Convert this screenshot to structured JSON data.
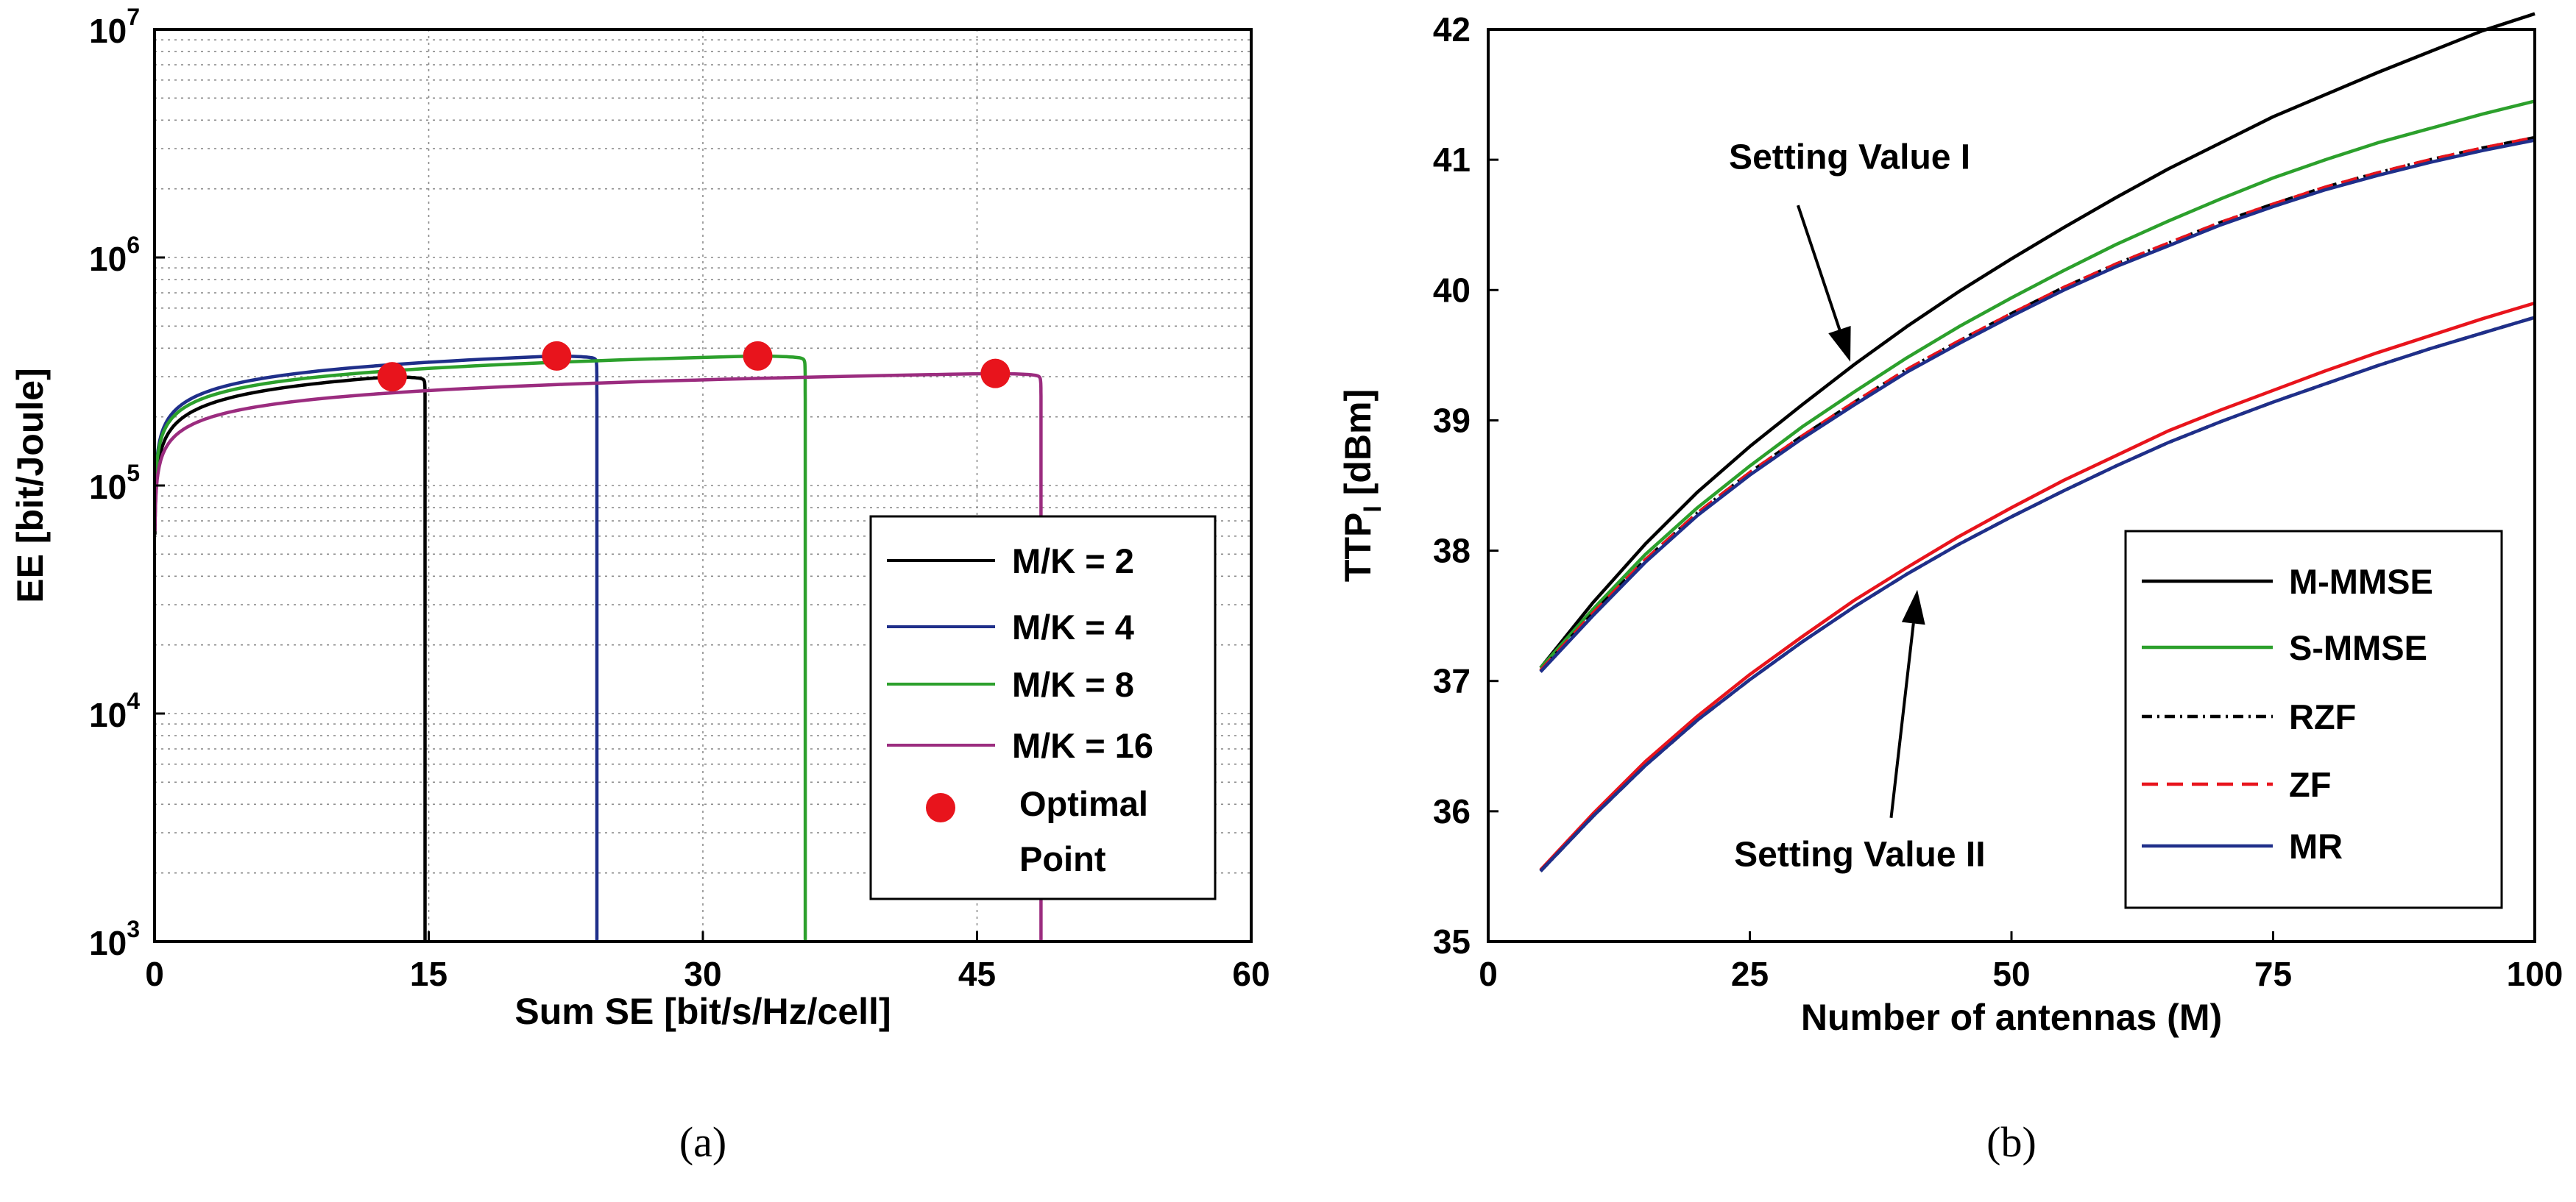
{
  "chart_data": [
    {
      "id": "a",
      "type": "line",
      "caption": "(a)",
      "xlabel": "Sum SE [bit/s/Hz/cell]",
      "ylabel": "EE [bit/Joule]",
      "xlim": [
        0,
        60
      ],
      "ylim_log10": [
        3,
        7
      ],
      "yscale": "log",
      "grid": true,
      "x_ticks": [
        0,
        15,
        30,
        45,
        60
      ],
      "x_tick_labels": [
        "0",
        "15",
        "30",
        "45",
        "60"
      ],
      "y_ticks_log10": [
        3,
        4,
        5,
        6,
        7
      ],
      "y_tick_labels": [
        {
          "base": "10",
          "exp": "3"
        },
        {
          "base": "10",
          "exp": "4"
        },
        {
          "base": "10",
          "exp": "5"
        },
        {
          "base": "10",
          "exp": "6"
        },
        {
          "base": "10",
          "exp": "7"
        }
      ],
      "legend_position": "lower-right",
      "series": [
        {
          "name": "M/K = 2",
          "color": "#000000",
          "peak_x": 13,
          "peak_y": 300000,
          "max_x": 14.8
        },
        {
          "name": "M/K = 4",
          "color": "#1f2f8a",
          "peak_x": 22,
          "peak_y": 370000,
          "max_x": 24.2
        },
        {
          "name": "M/K = 8",
          "color": "#2ca02c",
          "peak_x": 33,
          "peak_y": 370000,
          "max_x": 35.6
        },
        {
          "name": "M/K = 16",
          "color": "#9b2c7f",
          "peak_x": 46,
          "peak_y": 310000,
          "max_x": 48.5
        }
      ],
      "markers": {
        "name_lines": [
          "Optimal",
          "Point"
        ],
        "color": "#e8141c",
        "points": [
          {
            "x": 13,
            "y": 300000
          },
          {
            "x": 22,
            "y": 370000
          },
          {
            "x": 33,
            "y": 370000
          },
          {
            "x": 46,
            "y": 310000
          }
        ]
      }
    },
    {
      "id": "b",
      "type": "line",
      "caption": "(b)",
      "xlabel": "Number of antennas (M)",
      "ylabel": "TTP",
      "ylabel_sub": "I",
      "ylabel_suffix": " [dBm]",
      "xlim": [
        0,
        100
      ],
      "ylim": [
        35,
        42
      ],
      "grid": false,
      "x_ticks": [
        0,
        25,
        50,
        75,
        100
      ],
      "x_tick_labels": [
        "0",
        "25",
        "50",
        "75",
        "100"
      ],
      "y_ticks": [
        35,
        36,
        37,
        38,
        39,
        40,
        41,
        42
      ],
      "y_tick_labels": [
        "35",
        "36",
        "37",
        "38",
        "39",
        "40",
        "41",
        "42"
      ],
      "legend_position": "lower-right",
      "annotations": [
        {
          "text": "Setting Value I",
          "x": 23,
          "y": 40.93,
          "arrow_from": [
            29.6,
            40.65
          ],
          "arrow_to": [
            34.6,
            39.45
          ]
        },
        {
          "text": "Setting Value II",
          "x": 23.5,
          "y": 35.58,
          "arrow_from": [
            38.5,
            35.95
          ],
          "arrow_to": [
            41,
            37.7
          ]
        }
      ],
      "x": [
        5,
        10,
        15,
        20,
        25,
        30,
        35,
        40,
        45,
        50,
        55,
        60,
        65,
        70,
        75,
        80,
        85,
        90,
        95,
        100
      ],
      "series": [
        {
          "name": "M-MMSE",
          "color": "#000000",
          "dash": "",
          "group": "I",
          "values": [
            37.1,
            37.6,
            38.05,
            38.45,
            38.8,
            39.12,
            39.43,
            39.72,
            39.99,
            40.24,
            40.48,
            40.71,
            40.93,
            41.13,
            41.33,
            41.5,
            41.67,
            41.83,
            41.99,
            42.12
          ]
        },
        {
          "name": "S-MMSE",
          "color": "#2ca02c",
          "dash": "",
          "group": "I",
          "values": [
            37.1,
            37.55,
            37.97,
            38.33,
            38.65,
            38.95,
            39.22,
            39.48,
            39.72,
            39.94,
            40.15,
            40.35,
            40.53,
            40.7,
            40.86,
            41.0,
            41.13,
            41.24,
            41.35,
            41.45
          ]
        },
        {
          "name": "RZF",
          "color": "#000000",
          "dash": "14,7,3,7",
          "group": "I",
          "values": [
            37.08,
            37.52,
            37.93,
            38.29,
            38.6,
            38.88,
            39.14,
            39.39,
            39.61,
            39.82,
            40.02,
            40.2,
            40.36,
            40.52,
            40.66,
            40.79,
            40.9,
            41.0,
            41.09,
            41.17
          ]
        },
        {
          "name": "ZF",
          "color": "#e8141c",
          "dash": "22,12",
          "group": "I",
          "values": [
            37.08,
            37.52,
            37.93,
            38.29,
            38.6,
            38.88,
            39.14,
            39.39,
            39.61,
            39.82,
            40.02,
            40.2,
            40.36,
            40.52,
            40.66,
            40.79,
            40.9,
            41.0,
            41.09,
            41.17
          ]
        },
        {
          "name": "MR",
          "color": "#1f2f8a",
          "dash": "",
          "group": "I",
          "values": [
            37.07,
            37.5,
            37.91,
            38.27,
            38.58,
            38.86,
            39.12,
            39.37,
            39.59,
            39.8,
            40.0,
            40.18,
            40.34,
            40.5,
            40.64,
            40.77,
            40.88,
            40.98,
            41.07,
            41.15
          ]
        },
        {
          "name": "ZF (II)",
          "color": "#e8141c",
          "dash": "",
          "group": "II",
          "values": [
            35.55,
            35.98,
            36.38,
            36.73,
            37.05,
            37.34,
            37.62,
            37.87,
            38.11,
            38.33,
            38.54,
            38.73,
            38.92,
            39.08,
            39.23,
            39.38,
            39.52,
            39.65,
            39.78,
            39.9
          ]
        },
        {
          "name": "RZF (II)",
          "color": "#000000",
          "dash": "14,7,3,7",
          "group": "II",
          "values": [
            35.54,
            35.96,
            36.35,
            36.7,
            37.01,
            37.3,
            37.57,
            37.82,
            38.05,
            38.26,
            38.46,
            38.65,
            38.83,
            38.99,
            39.14,
            39.28,
            39.42,
            39.55,
            39.67,
            39.79
          ]
        },
        {
          "name": "MR (II)",
          "color": "#1f2f8a",
          "dash": "",
          "group": "II",
          "values": [
            35.54,
            35.96,
            36.35,
            36.7,
            37.01,
            37.3,
            37.57,
            37.82,
            38.05,
            38.26,
            38.46,
            38.65,
            38.83,
            38.99,
            39.14,
            39.28,
            39.42,
            39.55,
            39.67,
            39.79
          ]
        }
      ],
      "legend": [
        {
          "label": "M-MMSE",
          "color": "#000000",
          "dash": ""
        },
        {
          "label": "S-MMSE",
          "color": "#2ca02c",
          "dash": ""
        },
        {
          "label": "RZF",
          "color": "#000000",
          "dash": "14,7,3,7"
        },
        {
          "label": "ZF",
          "color": "#e8141c",
          "dash": "22,12"
        },
        {
          "label": "MR",
          "color": "#1f2f8a",
          "dash": ""
        }
      ]
    }
  ]
}
